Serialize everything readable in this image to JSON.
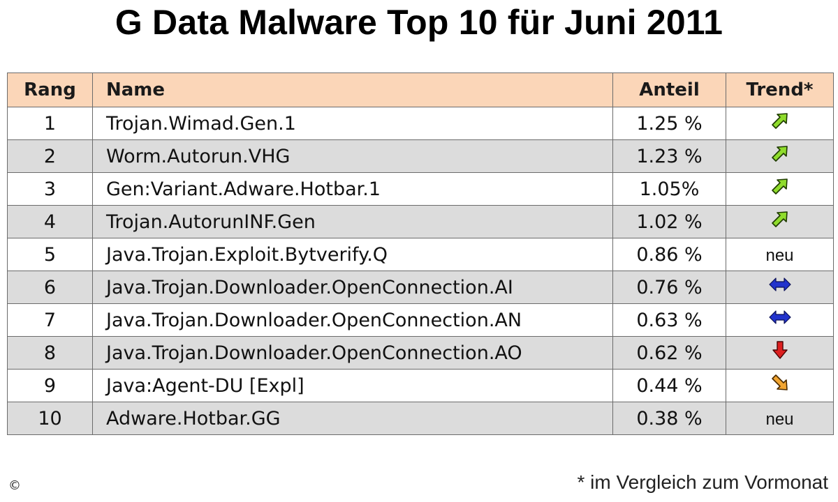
{
  "title": "G Data Malware Top 10 für Juni 2011",
  "table": {
    "headers": {
      "rank": "Rang",
      "name": "Name",
      "share": "Anteil",
      "trend": "Trend*"
    },
    "rows": [
      {
        "rank": "1",
        "name": "Trojan.Wimad.Gen.1",
        "share": "1.25 %",
        "trend": "up-icon",
        "trend_text": ""
      },
      {
        "rank": "2",
        "name": "Worm.Autorun.VHG",
        "share": "1.23 %",
        "trend": "up-icon",
        "trend_text": ""
      },
      {
        "rank": "3",
        "name": "Gen:Variant.Adware.Hotbar.1",
        "share": "1.05%",
        "trend": "up-icon",
        "trend_text": ""
      },
      {
        "rank": "4",
        "name": "Trojan.AutorunINF.Gen",
        "share": "1.02 %",
        "trend": "up-icon",
        "trend_text": ""
      },
      {
        "rank": "5",
        "name": "Java.Trojan.Exploit.Bytverify.Q",
        "share": "0.86 %",
        "trend": "new",
        "trend_text": "neu"
      },
      {
        "rank": "6",
        "name": "Java.Trojan.Downloader.OpenConnection.AI",
        "share": "0.76 %",
        "trend": "same-icon",
        "trend_text": ""
      },
      {
        "rank": "7",
        "name": "Java.Trojan.Downloader.OpenConnection.AN",
        "share": "0.63 %",
        "trend": "same-icon",
        "trend_text": ""
      },
      {
        "rank": "8",
        "name": "Java.Trojan.Downloader.OpenConnection.AO",
        "share": "0.62 %",
        "trend": "down-icon",
        "trend_text": ""
      },
      {
        "rank": "9",
        "name": "Java:Agent-DU [Expl]",
        "share": "0.44 %",
        "trend": "down-right-icon",
        "trend_text": ""
      },
      {
        "rank": "10",
        "name": "Adware.Hotbar.GG",
        "share": "0.38 %",
        "trend": "new",
        "trend_text": "neu"
      }
    ]
  },
  "footnote": "* im Vergleich zum Vormonat",
  "copyright": "©",
  "colors": {
    "header_bg": "#fbd6b8",
    "stripe_bg": "#dcdcdc",
    "up_arrow": "#8fdc2c",
    "same_arrow": "#2233cc",
    "down_arrow": "#dd1f1f",
    "down_right_arrow": "#f2a531"
  }
}
